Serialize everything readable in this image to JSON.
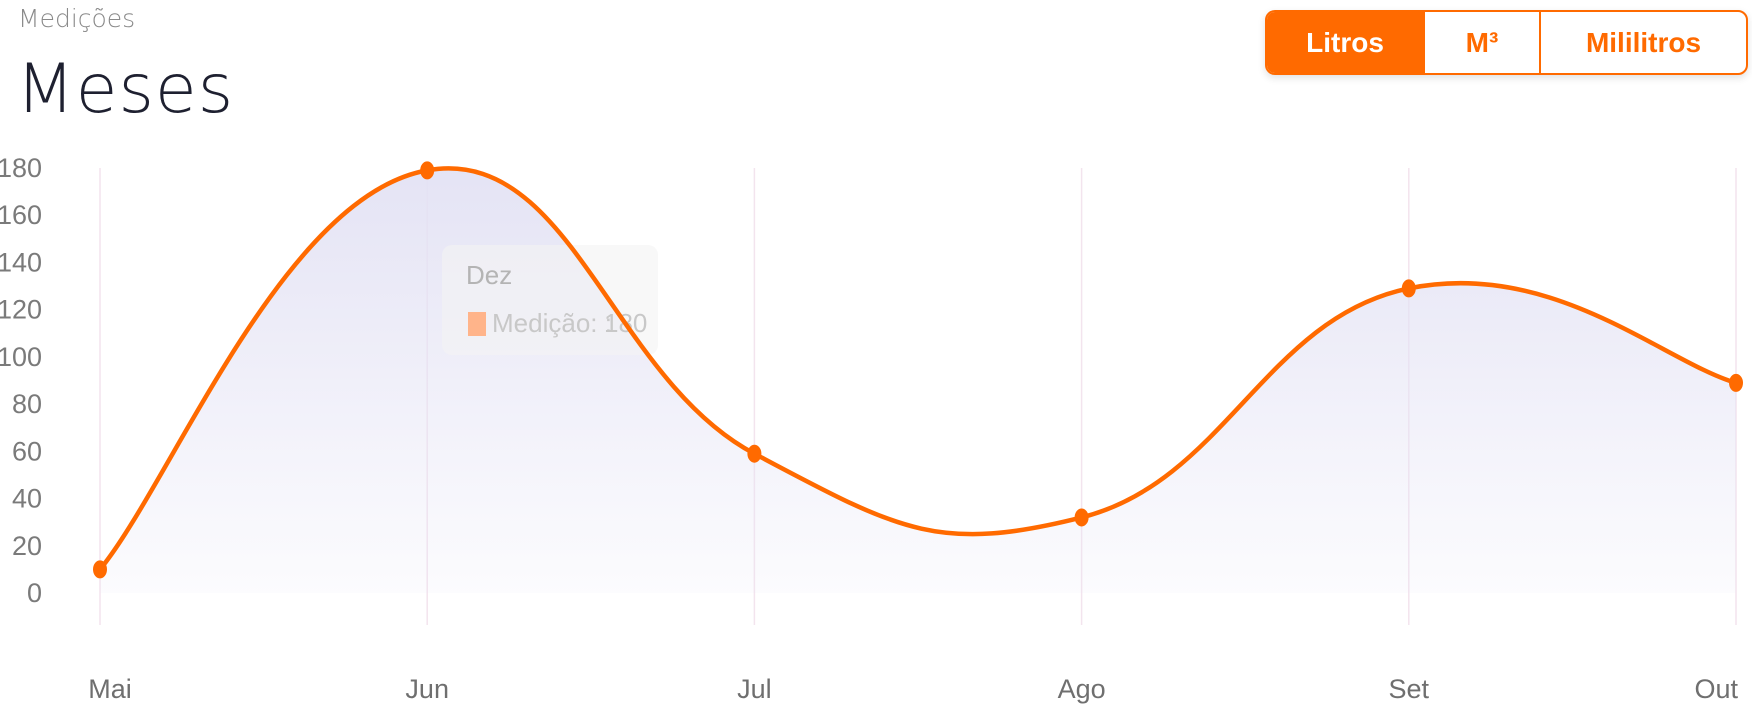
{
  "header": {
    "subtitle": "Medições",
    "title": "Meses"
  },
  "unit_toggle": {
    "options": [
      "Litros",
      "M³",
      "Mililitros"
    ],
    "selected": "Litros"
  },
  "colors": {
    "line": "#ff6a00",
    "area": "#e3e2f4",
    "grid": "#f3e4ee",
    "tooltip_swatch": "#ffb48a"
  },
  "tooltip": {
    "title": "Dez",
    "label": "Medição: :",
    "value": "180"
  },
  "chart_data": {
    "type": "area",
    "categories": [
      "Mai",
      "Jun",
      "Jul",
      "Ago",
      "Set",
      "Out"
    ],
    "series": [
      {
        "name": "Medição:",
        "values": [
          10,
          179,
          59,
          32,
          129,
          89
        ]
      }
    ],
    "yticks": [
      0,
      20,
      40,
      60,
      80,
      100,
      120,
      140,
      160,
      180
    ],
    "ylim": [
      0,
      180
    ],
    "smooth": true,
    "grid": "vertical",
    "markers": true
  }
}
